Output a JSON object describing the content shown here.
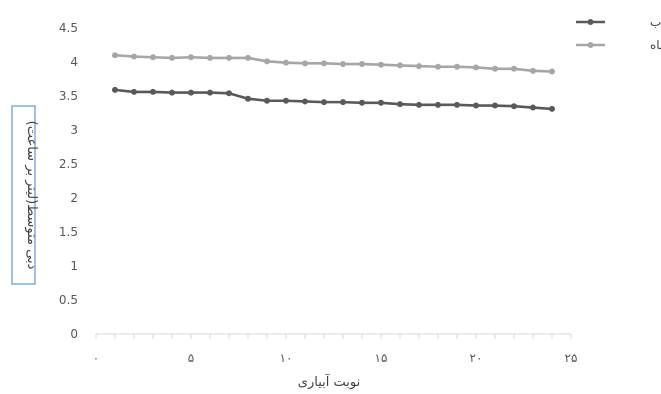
{
  "chart_data": {
    "type": "line",
    "title": "",
    "xlabel": "نوبت آبیاری",
    "ylabel": "دبی متوسط(لیتر بر ساعت)",
    "xlim": [
      0,
      25
    ],
    "ylim": [
      0,
      4.5
    ],
    "x_ticks": [
      0,
      5,
      10,
      15,
      20,
      25
    ],
    "x_tick_labels": [
      "۰",
      "۵",
      "۱۰",
      "۱۵",
      "۲۰",
      "۲۵"
    ],
    "y_ticks": [
      0,
      0.5,
      1,
      1.5,
      2,
      2.5,
      3,
      3.5,
      4,
      4.5
    ],
    "y_tick_labels": [
      "0",
      "0.5",
      "1",
      "1.5",
      "2",
      "2.5",
      "3",
      "3.5",
      "4",
      "4.5"
    ],
    "grid": false,
    "legend_position": "top-right",
    "x": [
      1,
      2,
      3,
      4,
      5,
      6,
      7,
      8,
      9,
      10,
      11,
      12,
      13,
      14,
      15,
      16,
      17,
      18,
      19,
      20,
      21,
      22,
      23,
      24
    ],
    "series": [
      {
        "name": "پساب",
        "color": "#595959",
        "values": [
          3.59,
          3.56,
          3.56,
          3.55,
          3.55,
          3.55,
          3.54,
          3.46,
          3.43,
          3.43,
          3.42,
          3.41,
          3.41,
          3.4,
          3.4,
          3.38,
          3.37,
          3.37,
          3.37,
          3.36,
          3.36,
          3.35,
          3.33,
          3.31
        ]
      },
      {
        "name": "آب چاه",
        "color": "#a6a6a6",
        "values": [
          4.1,
          4.08,
          4.07,
          4.06,
          4.07,
          4.06,
          4.06,
          4.06,
          4.01,
          3.99,
          3.98,
          3.98,
          3.97,
          3.97,
          3.96,
          3.95,
          3.94,
          3.93,
          3.93,
          3.92,
          3.9,
          3.9,
          3.87,
          3.86
        ]
      }
    ]
  }
}
